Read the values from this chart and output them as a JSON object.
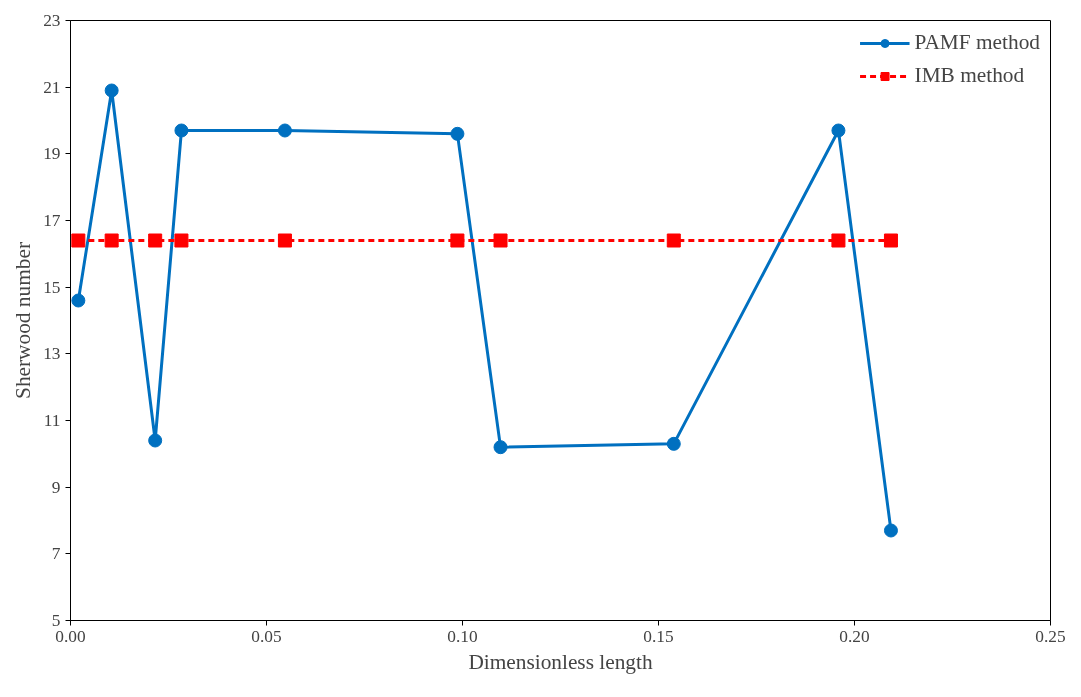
{
  "chart_data": {
    "type": "line",
    "xlabel": "Dimensionless length",
    "ylabel": "Sherwood number",
    "x": [
      0.002,
      0.0105,
      0.0216,
      0.0283,
      0.0547,
      0.0987,
      0.1097,
      0.1539,
      0.1959,
      0.2093
    ],
    "series": [
      {
        "name": "PAMF method",
        "color": "#0070c0",
        "marker": "circle",
        "line_style": "solid",
        "values": [
          14.6,
          20.9,
          10.4,
          19.7,
          19.7,
          19.6,
          10.2,
          10.3,
          19.7,
          7.7
        ]
      },
      {
        "name": "IMB method",
        "color": "#ff0000",
        "marker": "square",
        "line_style": "dashed",
        "values": [
          16.4,
          16.4,
          16.4,
          16.4,
          16.4,
          16.4,
          16.4,
          16.4,
          16.4,
          16.4
        ]
      }
    ],
    "xlim": [
      0,
      0.25
    ],
    "xticks": [
      {
        "value": 0,
        "label": "0.00"
      },
      {
        "value": 0.05,
        "label": "0.05"
      },
      {
        "value": 0.1,
        "label": "0.10"
      },
      {
        "value": 0.15,
        "label": "0.15"
      },
      {
        "value": 0.2,
        "label": "0.20"
      },
      {
        "value": 0.25,
        "label": "0.25"
      }
    ],
    "ylim": [
      5,
      23
    ],
    "yticks": [
      5,
      7,
      9,
      11,
      13,
      15,
      17,
      19,
      21,
      23
    ],
    "grid": false,
    "legend": "top right"
  }
}
